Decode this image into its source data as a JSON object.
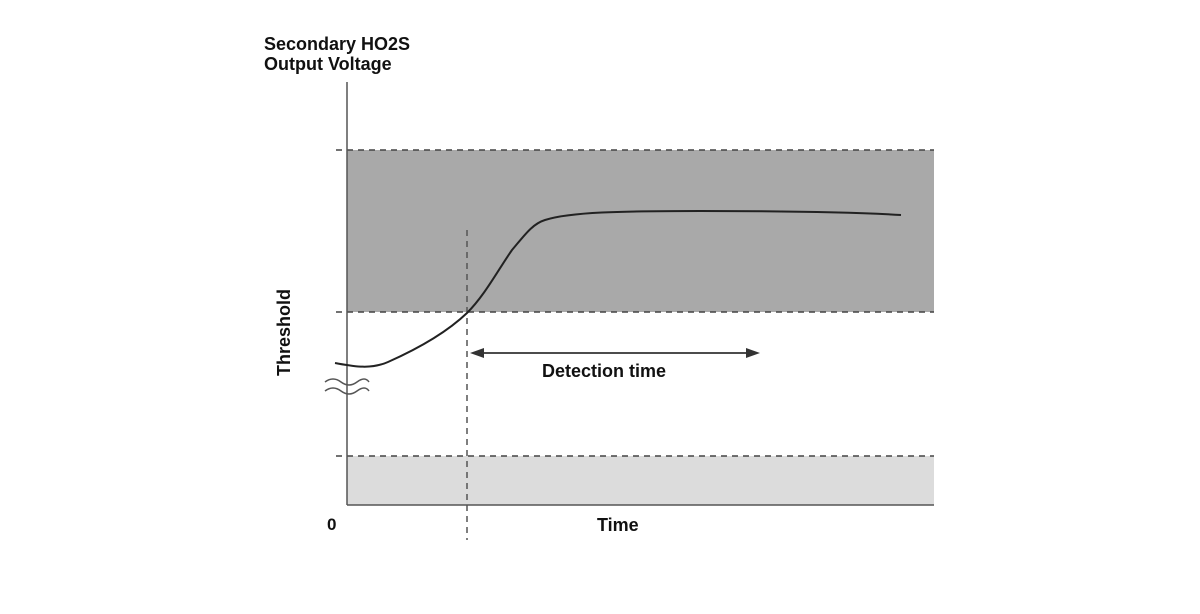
{
  "labels": {
    "y_axis_line1": "Secondary HO2S",
    "y_axis_line2": "Output Voltage",
    "threshold": "Threshold",
    "origin": "0",
    "x_axis": "Time",
    "detection_time": "Detection time"
  },
  "colors": {
    "upper_band": "#a9a9a9",
    "lower_band": "#dcdcdc",
    "line": "#222222",
    "background": "#ffffff"
  },
  "icons": {
    "axis_break": "double-wave-break-icon",
    "arrow": "double-headed-arrow-icon"
  }
}
